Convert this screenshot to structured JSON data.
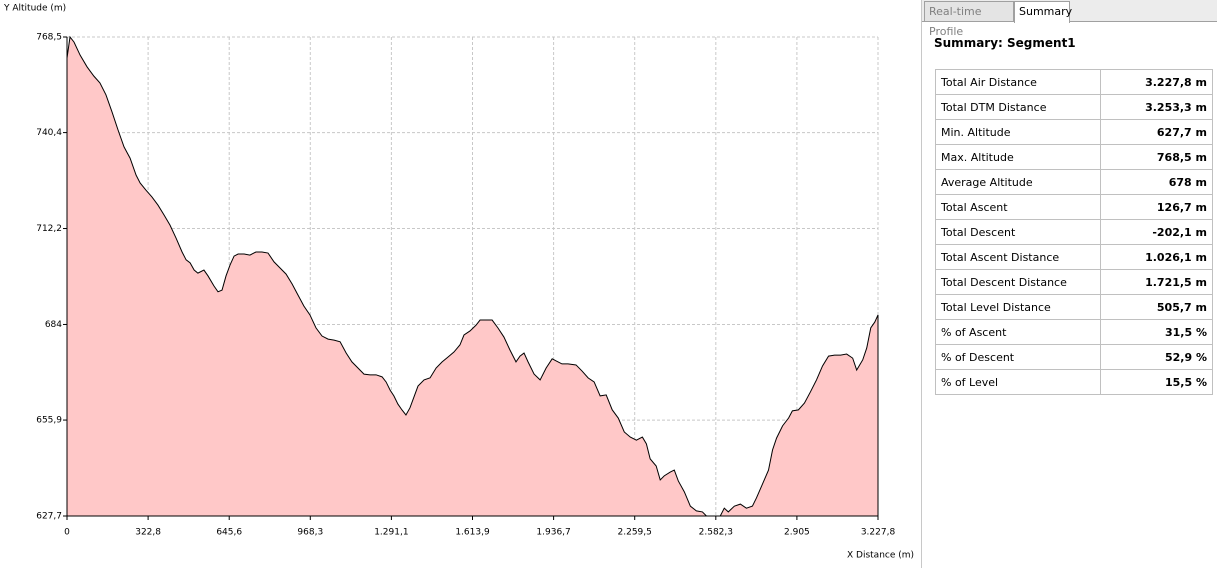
{
  "chart_data": {
    "type": "area",
    "y_label": "Y Altitude (m)",
    "x_label": "X Distance (m)",
    "x": [
      0,
      12,
      28,
      52,
      80,
      107,
      131,
      155,
      179,
      203,
      227,
      251,
      275,
      291,
      314,
      338,
      362,
      386,
      410,
      434,
      458,
      474,
      490,
      506,
      521,
      545,
      561,
      585,
      601,
      617,
      633,
      649,
      665,
      681,
      705,
      728,
      752,
      776,
      800,
      824,
      848,
      872,
      896,
      919,
      943,
      967,
      991,
      1015,
      1039,
      1063,
      1087,
      1111,
      1134,
      1158,
      1182,
      1206,
      1230,
      1254,
      1270,
      1286,
      1301,
      1317,
      1333,
      1349,
      1365,
      1381,
      1397,
      1421,
      1445,
      1469,
      1493,
      1516,
      1540,
      1564,
      1580,
      1604,
      1628,
      1644,
      1668,
      1692,
      1715,
      1739,
      1763,
      1787,
      1803,
      1819,
      1835,
      1859,
      1883,
      1907,
      1931,
      1946,
      1970,
      1994,
      2026,
      2050,
      2074,
      2098,
      2122,
      2146,
      2170,
      2194,
      2218,
      2242,
      2266,
      2290,
      2306,
      2321,
      2345,
      2361,
      2377,
      2401,
      2417,
      2433,
      2457,
      2481,
      2505,
      2529,
      2545,
      2560,
      2584,
      2600,
      2616,
      2632,
      2656,
      2680,
      2704,
      2728,
      2744,
      2768,
      2792,
      2808,
      2824,
      2848,
      2872,
      2887,
      2911,
      2935,
      2959,
      2983,
      3007,
      3031,
      3055,
      3079,
      3103,
      3127,
      3143,
      3167,
      3183,
      3199,
      3215,
      3227.8
    ],
    "values": [
      762.3,
      768.5,
      767.0,
      763.2,
      759.7,
      757.0,
      755.0,
      751.5,
      746.5,
      741.2,
      736.2,
      732.9,
      727.9,
      725.6,
      723.5,
      721.5,
      719.1,
      716.2,
      713.2,
      709.4,
      705.3,
      703.0,
      702.1,
      700.0,
      699.1,
      700.0,
      698.3,
      695.3,
      693.6,
      694.1,
      698.3,
      701.5,
      704.1,
      704.7,
      704.7,
      704.4,
      705.3,
      705.3,
      705.0,
      702.4,
      700.6,
      698.8,
      695.9,
      692.7,
      689.4,
      686.8,
      683.0,
      680.6,
      679.7,
      679.4,
      678.9,
      675.6,
      673.0,
      671.2,
      669.4,
      669.2,
      669.2,
      668.6,
      667.1,
      664.7,
      663.0,
      660.6,
      658.9,
      657.4,
      659.5,
      662.7,
      665.9,
      667.7,
      668.3,
      671.2,
      673.0,
      674.4,
      675.9,
      678.0,
      680.9,
      682.1,
      683.8,
      685.3,
      685.3,
      685.3,
      683.0,
      680.3,
      676.5,
      673.0,
      674.7,
      675.6,
      673.0,
      669.4,
      667.7,
      671.2,
      673.9,
      673.3,
      672.4,
      672.4,
      672.1,
      670.3,
      668.3,
      667.1,
      663.0,
      663.3,
      658.9,
      656.5,
      652.4,
      650.9,
      650.0,
      650.9,
      648.9,
      644.5,
      642.4,
      638.3,
      639.5,
      640.6,
      641.2,
      638.0,
      634.8,
      630.6,
      629.2,
      628.9,
      627.7,
      627.7,
      627.7,
      627.7,
      630.0,
      628.9,
      630.6,
      631.2,
      630.0,
      630.6,
      633.0,
      637.1,
      641.2,
      647.1,
      650.6,
      654.2,
      656.5,
      658.6,
      658.9,
      660.9,
      664.2,
      667.7,
      671.8,
      674.7,
      675.0,
      675.0,
      675.3,
      674.1,
      670.6,
      673.6,
      677.1,
      683.0,
      684.7,
      686.8
    ],
    "color": "#ffc8c8",
    "line_color": "#000000",
    "grid": true,
    "xlim": [
      0,
      3227.8
    ],
    "ylim": [
      627.7,
      768.5
    ],
    "xticks": [
      0,
      {
        "value": 322.8,
        "label": "322,8"
      },
      {
        "value": 645.6,
        "label": "645,6"
      },
      {
        "value": 968.3,
        "label": "968,3"
      },
      {
        "value": 1291.1,
        "label": "1.291,1"
      },
      {
        "value": 1613.9,
        "label": "1.613,9"
      },
      {
        "value": 1936.7,
        "label": "1.936,7"
      },
      {
        "value": 2259.5,
        "label": "2.259,5"
      },
      {
        "value": 2582.3,
        "label": "2.582,3"
      },
      {
        "value": 2905,
        "label": "2.905"
      },
      {
        "value": 3227.8,
        "label": "3.227,8"
      }
    ],
    "yticks": [
      {
        "value": 627.7,
        "label": "627,7"
      },
      {
        "value": 655.9,
        "label": "655,9"
      },
      684,
      {
        "value": 712.2,
        "label": "712,2"
      },
      {
        "value": 740.4,
        "label": "740,4"
      },
      {
        "value": 768.5,
        "label": "768,5"
      }
    ]
  },
  "tabs": [
    "Real-time Profile",
    "Summary"
  ],
  "summary": {
    "title": "Summary: Segment1",
    "rows": [
      [
        "Total Air Distance",
        "3.227,8 m"
      ],
      [
        "Total DTM Distance",
        "3.253,3 m"
      ],
      [
        "Min. Altitude",
        "627,7 m"
      ],
      [
        "Max. Altitude",
        "768,5 m"
      ],
      [
        "Average Altitude",
        "678 m"
      ],
      [
        "Total Ascent",
        "126,7 m"
      ],
      [
        "Total Descent",
        "-202,1 m"
      ],
      [
        "Total Ascent Distance",
        "1.026,1 m"
      ],
      [
        "Total Descent Distance",
        "1.721,5 m"
      ],
      [
        "Total Level Distance",
        "505,7 m"
      ],
      [
        "% of Ascent",
        "31,5 %"
      ],
      [
        "% of Descent",
        "52,9 %"
      ],
      [
        "% of Level",
        "15,5 %"
      ]
    ]
  }
}
